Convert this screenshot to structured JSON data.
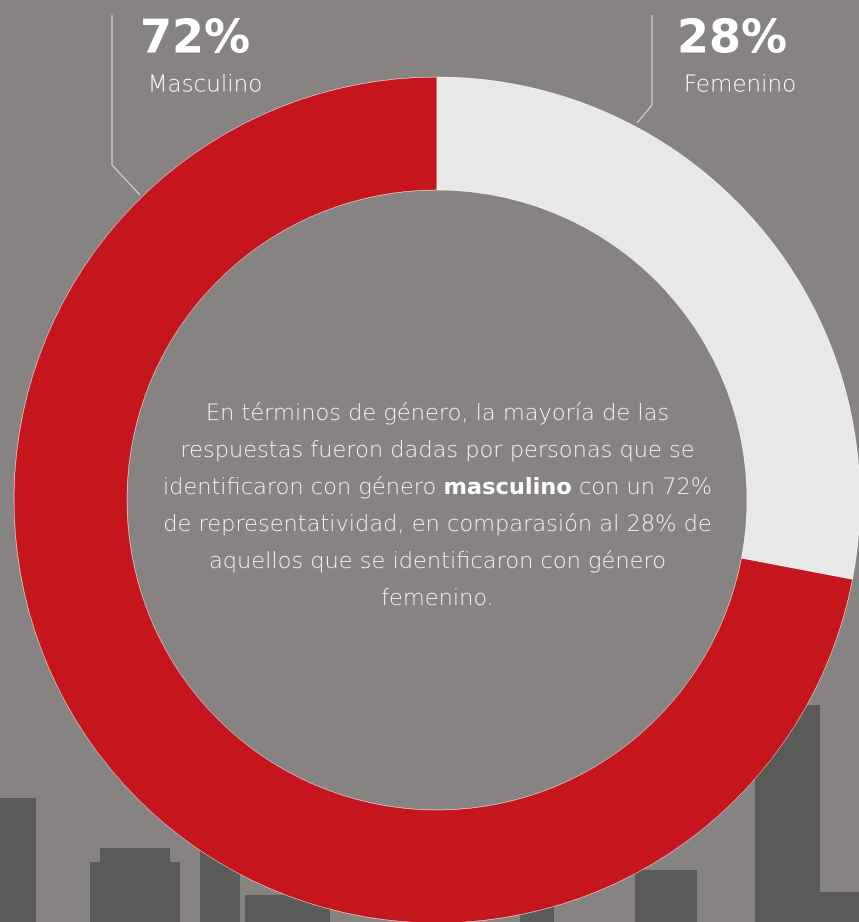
{
  "chart_data": {
    "type": "donut",
    "categories": [
      "Masculino",
      "Femenino"
    ],
    "values": [
      72,
      28
    ],
    "value_labels": [
      "72%",
      "28%"
    ],
    "colors": [
      "#c4161c",
      "#e8e8e8"
    ],
    "description": {
      "before": "En términos de género, la mayoría de las respuestas fueron dadas por personas que se identificaron con género",
      "emphasis": "masculino",
      "after": "con un 72% de representatividad, en comparasión al 28% de aquellos que se identificaron con género femenino."
    }
  }
}
